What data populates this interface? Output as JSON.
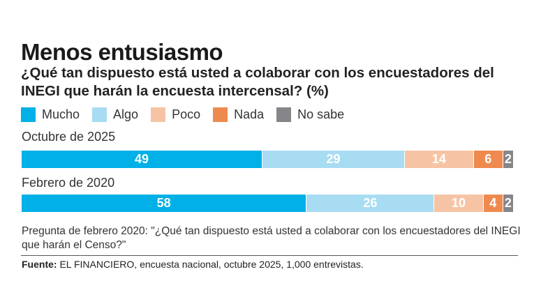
{
  "chart_data": {
    "type": "bar",
    "orientation": "horizontal-stacked",
    "title": "Menos entusiasmo",
    "subtitle": "¿Qué tan dispuesto está usted a colaborar con los encuestadores del INEGI que harán la encuesta intercensal? (%)",
    "legend": [
      {
        "name": "Mucho",
        "color": "#00b0e6"
      },
      {
        "name": "Algo",
        "color": "#a8dcf3"
      },
      {
        "name": "Poco",
        "color": "#f6c4a5"
      },
      {
        "name": "Nada",
        "color": "#ee8a4f"
      },
      {
        "name": "No sabe",
        "color": "#86868a"
      }
    ],
    "categories": [
      "Octubre de 2025",
      "Febrero de 2020"
    ],
    "series": [
      {
        "name": "Mucho",
        "values": [
          49,
          58
        ]
      },
      {
        "name": "Algo",
        "values": [
          29,
          26
        ]
      },
      {
        "name": "Poco",
        "values": [
          14,
          10
        ]
      },
      {
        "name": "Nada",
        "values": [
          6,
          4
        ]
      },
      {
        "name": "No sabe",
        "values": [
          2,
          2
        ]
      }
    ],
    "xlim": [
      0,
      100
    ],
    "legend_placement": "top-left",
    "note": "Pregunta de febrero 2020: \"¿Qué tan dispuesto está usted a colaborar con los encuestadores del INEGI que harán el Censo?\"",
    "source_label": "Fuente:",
    "source_text": " EL FINANCIERO, encuesta nacional, octubre 2025, 1,000 entrevistas."
  }
}
